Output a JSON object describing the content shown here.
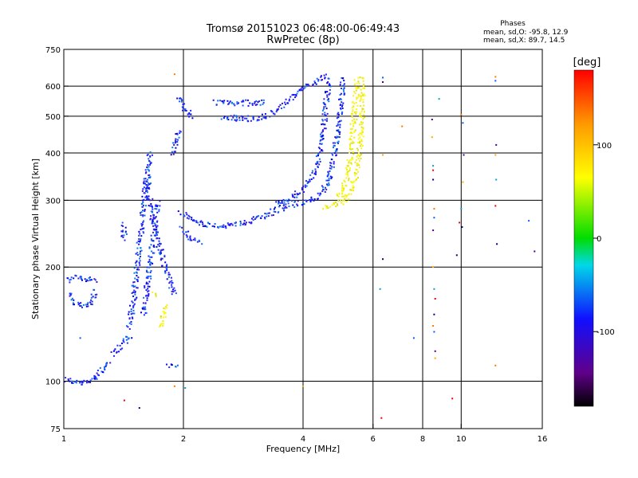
{
  "chart_data": {
    "type": "scatter",
    "title": "Tromsø 20151023 06:48:00-06:49:43",
    "subtitle": "RwPretec (8p)",
    "xlabel": "Frequency [MHz]",
    "ylabel": "Stationary phase Virtual Height [km]",
    "x_scale": "log",
    "y_scale": "log",
    "xlim": [
      1,
      16
    ],
    "ylim": [
      75,
      750
    ],
    "x_ticks": [
      1,
      2,
      4,
      6,
      8,
      10,
      16
    ],
    "y_ticks": [
      75,
      100,
      200,
      300,
      400,
      500,
      600,
      750
    ],
    "x_grid": [
      2,
      4,
      6,
      8,
      10
    ],
    "y_grid": [
      100,
      200,
      300,
      400,
      500,
      600
    ],
    "grid": true,
    "legend": {
      "title": "Phases",
      "lines": [
        "mean, sd,O: -95.8, 12.9",
        "mean, sd,X:  89.7, 14.5"
      ],
      "position": "top-right"
    },
    "colorbar": {
      "label": "[deg]",
      "range": [
        -180,
        180
      ],
      "ticks": [
        100,
        0,
        -100
      ],
      "position": "right"
    },
    "series": [
      {
        "mode": "O",
        "phase_mean": -95.8,
        "phase_sd": 12.9,
        "traces": [
          [
            [
              1.0,
              102
            ],
            [
              1.05,
              100
            ],
            [
              1.1,
              99
            ],
            [
              1.15,
              100
            ],
            [
              1.2,
              104
            ],
            [
              1.25,
              108
            ],
            [
              1.3,
              113
            ]
          ],
          [
            [
              1.03,
              170
            ],
            [
              1.06,
              162
            ],
            [
              1.1,
              158
            ],
            [
              1.15,
              160
            ],
            [
              1.18,
              168
            ],
            [
              1.2,
              175
            ]
          ],
          [
            [
              1.02,
              185
            ],
            [
              1.06,
              190
            ],
            [
              1.1,
              187
            ],
            [
              1.16,
              186
            ],
            [
              1.2,
              185
            ]
          ],
          [
            [
              1.33,
              118
            ],
            [
              1.37,
              122
            ],
            [
              1.42,
              128
            ],
            [
              1.47,
              133
            ]
          ],
          [
            [
              1.4,
              260
            ],
            [
              1.42,
              237
            ]
          ],
          [
            [
              1.45,
              140
            ],
            [
              1.48,
              155
            ],
            [
              1.5,
              175
            ],
            [
              1.52,
              200
            ],
            [
              1.55,
              235
            ],
            [
              1.58,
              280
            ],
            [
              1.6,
              330
            ],
            [
              1.63,
              385
            ],
            [
              1.65,
              405
            ]
          ],
          [
            [
              1.58,
              150
            ],
            [
              1.6,
              165
            ],
            [
              1.62,
              185
            ],
            [
              1.65,
              215
            ],
            [
              1.68,
              245
            ],
            [
              1.7,
              275
            ],
            [
              1.72,
              300
            ]
          ],
          [
            [
              1.62,
              350
            ],
            [
              1.63,
              310
            ],
            [
              1.66,
              275
            ],
            [
              1.7,
              250
            ],
            [
              1.74,
              225
            ],
            [
              1.78,
              205
            ],
            [
              1.82,
              190
            ],
            [
              1.86,
              178
            ],
            [
              1.9,
              170
            ]
          ],
          [
            [
              1.88,
              400
            ],
            [
              1.9,
              420
            ],
            [
              1.92,
              450
            ],
            [
              1.94,
              465
            ]
          ],
          [
            [
              1.92,
              560
            ],
            [
              1.98,
              540
            ],
            [
              2.05,
              515
            ],
            [
              2.1,
              495
            ]
          ],
          [
            [
              1.98,
              255
            ],
            [
              2.05,
              240
            ],
            [
              2.2,
              233
            ]
          ],
          [
            [
              1.96,
              280
            ],
            [
              2.05,
              270
            ],
            [
              2.2,
              262
            ],
            [
              2.4,
              258
            ],
            [
              2.6,
              258
            ],
            [
              2.8,
              262
            ],
            [
              3.0,
              268
            ],
            [
              3.2,
              275
            ],
            [
              3.4,
              283
            ],
            [
              3.6,
              290
            ],
            [
              3.8,
              295
            ],
            [
              4.0,
              298
            ],
            [
              4.2,
              302
            ],
            [
              4.4,
              312
            ],
            [
              4.6,
              335
            ],
            [
              4.7,
              370
            ],
            [
              4.8,
              420
            ],
            [
              4.9,
              480
            ],
            [
              4.95,
              540
            ],
            [
              5.0,
              600
            ],
            [
              5.02,
              640
            ]
          ],
          [
            [
              2.5,
              500
            ],
            [
              2.75,
              495
            ],
            [
              3.0,
              495
            ],
            [
              3.2,
              505
            ],
            [
              3.4,
              520
            ],
            [
              3.6,
              545
            ],
            [
              3.8,
              570
            ],
            [
              4.0,
              595
            ],
            [
              4.2,
              615
            ],
            [
              4.4,
              630
            ],
            [
              4.6,
              640
            ]
          ],
          [
            [
              3.4,
              295
            ],
            [
              3.6,
              300
            ],
            [
              3.8,
              310
            ],
            [
              4.0,
              325
            ],
            [
              4.2,
              345
            ],
            [
              4.35,
              380
            ],
            [
              4.45,
              430
            ],
            [
              4.5,
              480
            ],
            [
              4.55,
              540
            ],
            [
              4.6,
              590
            ],
            [
              4.6,
              630
            ]
          ],
          [
            [
              2.4,
              545
            ],
            [
              2.6,
              545
            ],
            [
              2.8,
              545
            ],
            [
              3.0,
              543
            ],
            [
              3.2,
              550
            ]
          ],
          [
            [
              1.82,
              110
            ],
            [
              1.88,
              110
            ],
            [
              1.92,
              110
            ]
          ]
        ]
      },
      {
        "mode": "X",
        "phase_mean": 89.7,
        "phase_sd": 14.5,
        "traces": [
          [
            [
              4.5,
              290
            ],
            [
              4.7,
              292
            ],
            [
              4.9,
              295
            ],
            [
              5.1,
              305
            ],
            [
              5.3,
              325
            ],
            [
              5.45,
              365
            ],
            [
              5.55,
              420
            ],
            [
              5.6,
              480
            ],
            [
              5.62,
              540
            ],
            [
              5.6,
              600
            ],
            [
              5.55,
              640
            ]
          ],
          [
            [
              4.85,
              305
            ],
            [
              5.0,
              320
            ],
            [
              5.15,
              350
            ],
            [
              5.25,
              400
            ],
            [
              5.3,
              450
            ],
            [
              5.35,
              500
            ],
            [
              5.4,
              560
            ],
            [
              5.45,
              620
            ]
          ],
          [
            [
              1.75,
              140
            ],
            [
              1.78,
              150
            ],
            [
              1.8,
              160
            ]
          ],
          [
            [
              1.68,
              170
            ],
            [
              1.72,
              168
            ]
          ]
        ]
      }
    ],
    "sparse_points": [
      [
        1.9,
        645
      ],
      [
        6.35,
        632
      ],
      [
        6.35,
        615
      ],
      [
        6.35,
        395
      ],
      [
        6.25,
        175
      ],
      [
        6.3,
        80
      ],
      [
        6.35,
        210
      ],
      [
        7.1,
        470
      ],
      [
        7.6,
        130
      ],
      [
        8.45,
        490
      ],
      [
        8.45,
        440
      ],
      [
        8.5,
        370
      ],
      [
        8.5,
        360
      ],
      [
        8.5,
        340
      ],
      [
        8.55,
        285
      ],
      [
        8.55,
        270
      ],
      [
        8.5,
        250
      ],
      [
        8.5,
        200
      ],
      [
        8.55,
        175
      ],
      [
        8.6,
        165
      ],
      [
        8.55,
        150
      ],
      [
        8.5,
        140
      ],
      [
        8.55,
        135
      ],
      [
        8.6,
        120
      ],
      [
        8.6,
        115
      ],
      [
        8.8,
        555
      ],
      [
        9.5,
        90
      ],
      [
        9.75,
        215
      ],
      [
        10.0,
        505
      ],
      [
        10.1,
        480
      ],
      [
        10.15,
        395
      ],
      [
        10.1,
        335
      ],
      [
        10.0,
        285
      ],
      [
        9.9,
        262
      ],
      [
        10.05,
        255
      ],
      [
        12.2,
        635
      ],
      [
        12.2,
        620
      ],
      [
        12.25,
        420
      ],
      [
        12.2,
        395
      ],
      [
        12.25,
        340
      ],
      [
        12.2,
        290
      ],
      [
        12.3,
        230
      ],
      [
        12.2,
        110
      ],
      [
        14.8,
        265
      ],
      [
        15.3,
        220
      ],
      [
        4.0,
        97
      ],
      [
        2.02,
        96
      ],
      [
        1.42,
        89
      ],
      [
        1.55,
        85
      ],
      [
        1.9,
        97
      ],
      [
        1.1,
        130
      ]
    ]
  }
}
